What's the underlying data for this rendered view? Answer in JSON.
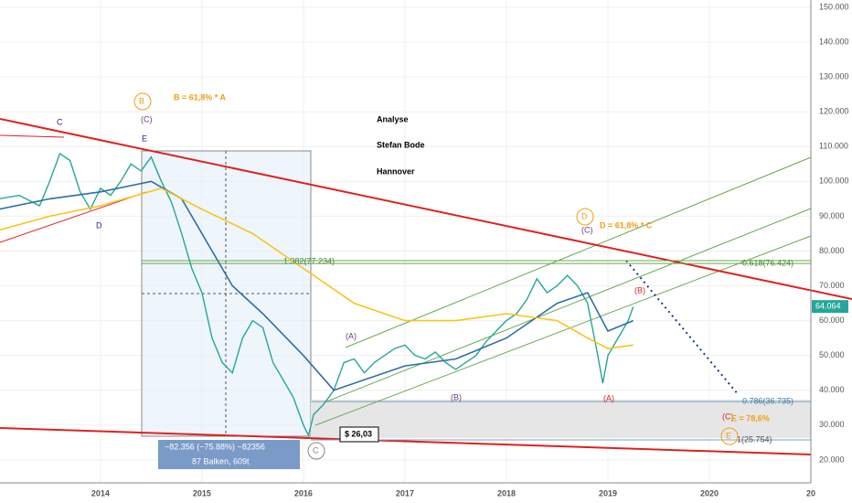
{
  "chart_data": {
    "type": "line",
    "xlim": [
      2013.01,
      2021.0
    ],
    "ylim": [
      13.4,
      152.1
    ],
    "xticks": [
      2014,
      2015,
      2016,
      2017,
      2018,
      2019,
      2020,
      {
        "value": 2021,
        "label": "20"
      }
    ],
    "yticks": [
      {
        "value": 20,
        "label": "20.000"
      },
      {
        "value": 30,
        "label": "30.000"
      },
      {
        "value": 40,
        "label": "40.000"
      },
      {
        "value": 50,
        "label": "50.000"
      },
      {
        "value": 60,
        "label": "60.000"
      },
      {
        "value": 70,
        "label": "70.000"
      },
      {
        "value": 80,
        "label": "80.000"
      },
      {
        "value": 90,
        "label": "90.000"
      },
      {
        "value": 100,
        "label": "100.000"
      },
      {
        "value": 110,
        "label": "110.000"
      },
      {
        "value": 120,
        "label": "120.000"
      },
      {
        "value": 130,
        "label": "130.000"
      },
      {
        "value": 140,
        "label": "140.000"
      },
      {
        "value": 150,
        "label": "150.000"
      }
    ],
    "series": [
      {
        "color": "#26a69a",
        "x": [
          2013.0,
          2013.2,
          2013.4,
          2013.5,
          2013.6,
          2013.7,
          2013.8,
          2013.9,
          2014.0,
          2014.1,
          2014.2,
          2014.3,
          2014.4,
          2014.5,
          2014.6,
          2014.7,
          2014.8,
          2014.9,
          2015.0,
          2015.1,
          2015.2,
          2015.3,
          2015.4,
          2015.5,
          2015.6,
          2015.7,
          2015.8,
          2015.9,
          2016.0,
          2016.05,
          2016.1,
          2016.2,
          2016.3,
          2016.4,
          2016.5,
          2016.6,
          2016.7,
          2016.8,
          2016.9,
          2017.0,
          2017.1,
          2017.2,
          2017.3,
          2017.4,
          2017.5,
          2017.6,
          2017.7,
          2017.8,
          2017.9,
          2018.0,
          2018.1,
          2018.2,
          2018.3,
          2018.4,
          2018.5,
          2018.6,
          2018.7,
          2018.8,
          2018.9,
          2018.95,
          2019.0,
          2019.1,
          2019.2,
          2019.25
        ],
        "values": [
          95,
          96,
          93,
          100,
          108,
          106,
          97,
          92,
          98,
          96,
          100,
          105,
          103,
          107,
          100,
          94,
          85,
          75,
          68,
          55,
          48,
          45,
          55,
          60,
          58,
          48,
          43,
          38,
          30,
          27,
          33,
          36,
          40,
          48,
          49,
          45,
          48,
          50,
          52,
          53,
          50,
          49,
          51,
          48,
          46,
          48,
          50,
          54,
          57,
          60,
          62,
          66,
          72,
          68,
          70,
          73,
          70,
          65,
          50,
          42,
          50,
          55,
          60,
          64
        ]
      },
      {
        "color": "#2e6fa3",
        "x": [
          2013.0,
          2013.5,
          2014.0,
          2014.5,
          2014.8,
          2015.0,
          2015.3,
          2015.6,
          2016.0,
          2016.3,
          2016.6,
          2017.0,
          2017.5,
          2018.0,
          2018.5,
          2018.8,
          2019.0,
          2019.25
        ],
        "values": [
          92,
          95,
          97,
          100,
          95,
          85,
          70,
          62,
          50,
          40,
          43,
          47,
          49,
          55,
          65,
          68,
          57,
          60
        ]
      },
      {
        "color": "#f5c518",
        "x": [
          2013.0,
          2013.5,
          2014.0,
          2014.6,
          2015.0,
          2015.5,
          2016.0,
          2016.5,
          2017.0,
          2017.5,
          2018.0,
          2018.5,
          2018.8,
          2019.0,
          2019.25
        ],
        "values": [
          86,
          90,
          93,
          98,
          92,
          85,
          75,
          65,
          60,
          60,
          62,
          60,
          55,
          52,
          53
        ]
      }
    ],
    "last_price": {
      "value": 64.064,
      "label": "64.064"
    },
    "fib_levels": [
      {
        "value": 77.234,
        "label": "1.382(77.234)"
      },
      {
        "value": 76.424,
        "label": "0.618(76.424)"
      },
      {
        "value": 36.735,
        "label": "0.786(36.735)"
      },
      {
        "value": 25.754,
        "label": "1(25.754)"
      }
    ],
    "annotations": [
      {
        "text": "B",
        "color": "#f39c12"
      },
      {
        "text": "B = 61,8% * A",
        "color": "#f39c12"
      },
      {
        "text": "(C)",
        "color": "#6a3d7a"
      },
      {
        "text": "C",
        "color": "#1a2aa0"
      },
      {
        "text": "E",
        "color": "#1a2aa0"
      },
      {
        "text": "D",
        "color": "#1a2aa0"
      },
      {
        "text": "Analyse",
        "color": "#000000"
      },
      {
        "text": "Stefan Bode",
        "color": "#000000"
      },
      {
        "text": "Hannover",
        "color": "#000000"
      },
      {
        "text": "D",
        "color": "#f39c12"
      },
      {
        "text": "D = 61,8% * C",
        "color": "#f39c12"
      },
      {
        "text": "(C)",
        "color": "#6a3d7a"
      },
      {
        "text": "(B)",
        "color": "#d62728"
      },
      {
        "text": "(A)",
        "color": "#6a3d7a"
      },
      {
        "text": "(B)",
        "color": "#6a3d7a"
      },
      {
        "text": "(A)",
        "color": "#d62728"
      },
      {
        "text": "C",
        "color": "#888888"
      },
      {
        "text": "(C)",
        "color": "#d62728"
      },
      {
        "text": "E = 78,6%",
        "color": "#f39c12"
      },
      {
        "text": "E",
        "color": "#f39c12"
      },
      {
        "text": "$ 26,03",
        "color": "#000000"
      },
      {
        "text": "−82.356 (−75.88%) −82356",
        "color": "#ffffff"
      },
      {
        "text": "87 Balken, 609t",
        "color": "#ffffff"
      }
    ]
  }
}
